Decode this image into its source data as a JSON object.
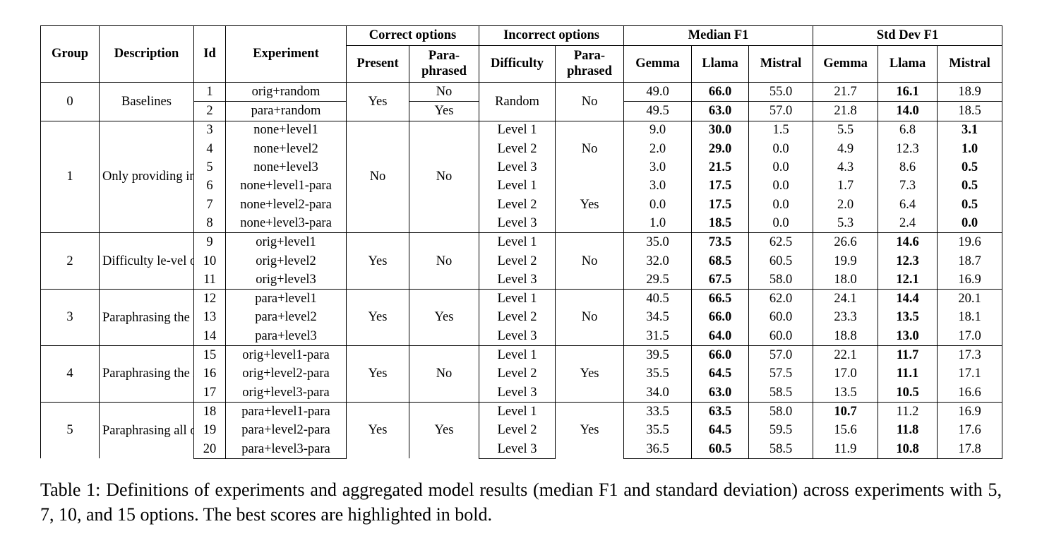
{
  "table": {
    "headers": {
      "group": "Group",
      "description": "Description",
      "id": "Id",
      "experiment": "Experiment",
      "correct_options": "Correct options",
      "incorrect_options": "Incorrect options",
      "median_f1": "Median F1",
      "std_dev_f1": "Std Dev F1",
      "present": "Present",
      "paraphrased": "Para-\nphrased",
      "difficulty": "Difficulty",
      "gemma": "Gemma",
      "llama": "Llama",
      "mistral": "Mistral"
    },
    "groups": [
      {
        "group": "0",
        "description": "Baselines",
        "rows": [
          {
            "id": "1",
            "experiment": "orig+random",
            "present": "Yes",
            "correct_para": "No",
            "difficulty": "Random",
            "incorrect_para": "No",
            "median": [
              "49.0",
              "66.0",
              "55.0"
            ],
            "std": [
              "21.7",
              "16.1",
              "18.9"
            ],
            "bold_median": 1,
            "bold_std": 1
          },
          {
            "id": "2",
            "experiment": "para+random",
            "present": "",
            "correct_para": "Yes",
            "difficulty": "",
            "incorrect_para": "",
            "median": [
              "49.5",
              "63.0",
              "57.0"
            ],
            "std": [
              "21.8",
              "14.0",
              "18.5"
            ],
            "bold_median": 1,
            "bold_std": 1
          }
        ]
      },
      {
        "group": "1",
        "description": "Only providing incorrect options",
        "rows": [
          {
            "id": "3",
            "experiment": "none+level1",
            "present": "No",
            "correct_para": "No",
            "difficulty": "Level 1",
            "incorrect_para": "No",
            "median": [
              "9.0",
              "30.0",
              "1.5"
            ],
            "std": [
              "5.5",
              "6.8",
              "3.1"
            ],
            "bold_median": 1,
            "bold_std": 2
          },
          {
            "id": "4",
            "experiment": "none+level2",
            "present": "",
            "correct_para": "",
            "difficulty": "Level 2",
            "incorrect_para": "",
            "median": [
              "2.0",
              "29.0",
              "0.0"
            ],
            "std": [
              "4.9",
              "12.3",
              "1.0"
            ],
            "bold_median": 1,
            "bold_std": 2
          },
          {
            "id": "5",
            "experiment": "none+level3",
            "present": "",
            "correct_para": "",
            "difficulty": "Level 3",
            "incorrect_para": "",
            "median": [
              "3.0",
              "21.5",
              "0.0"
            ],
            "std": [
              "4.3",
              "8.6",
              "0.5"
            ],
            "bold_median": 1,
            "bold_std": 2
          },
          {
            "id": "6",
            "experiment": "none+level1-para",
            "present": "",
            "correct_para": "",
            "difficulty": "Level 1",
            "incorrect_para": "Yes",
            "median": [
              "3.0",
              "17.5",
              "0.0"
            ],
            "std": [
              "1.7",
              "7.3",
              "0.5"
            ],
            "bold_median": 1,
            "bold_std": 2
          },
          {
            "id": "7",
            "experiment": "none+level2-para",
            "present": "",
            "correct_para": "",
            "difficulty": "Level 2",
            "incorrect_para": "",
            "median": [
              "0.0",
              "17.5",
              "0.0"
            ],
            "std": [
              "2.0",
              "6.4",
              "0.5"
            ],
            "bold_median": 1,
            "bold_std": 2
          },
          {
            "id": "8",
            "experiment": "none+level3-para",
            "present": "",
            "correct_para": "",
            "difficulty": "Level 3",
            "incorrect_para": "",
            "median": [
              "1.0",
              "18.5",
              "0.0"
            ],
            "std": [
              "5.3",
              "2.4",
              "0.0"
            ],
            "bold_median": 1,
            "bold_std": 2
          }
        ]
      },
      {
        "group": "2",
        "description": "Difficulty le-vel of incor-rect options",
        "rows": [
          {
            "id": "9",
            "experiment": "orig+level1",
            "present": "Yes",
            "correct_para": "No",
            "difficulty": "Level 1",
            "incorrect_para": "No",
            "median": [
              "35.0",
              "73.5",
              "62.5"
            ],
            "std": [
              "26.6",
              "14.6",
              "19.6"
            ],
            "bold_median": 1,
            "bold_std": 1
          },
          {
            "id": "10",
            "experiment": "orig+level2",
            "present": "",
            "correct_para": "",
            "difficulty": "Level 2",
            "incorrect_para": "",
            "median": [
              "32.0",
              "68.5",
              "60.5"
            ],
            "std": [
              "19.9",
              "12.3",
              "18.7"
            ],
            "bold_median": 1,
            "bold_std": 1
          },
          {
            "id": "11",
            "experiment": "orig+level3",
            "present": "",
            "correct_para": "",
            "difficulty": "Level 3",
            "incorrect_para": "",
            "median": [
              "29.5",
              "67.5",
              "58.0"
            ],
            "std": [
              "18.0",
              "12.1",
              "16.9"
            ],
            "bold_median": 1,
            "bold_std": 1
          }
        ]
      },
      {
        "group": "3",
        "description": "Paraphrasing the correct options",
        "rows": [
          {
            "id": "12",
            "experiment": "para+level1",
            "present": "Yes",
            "correct_para": "Yes",
            "difficulty": "Level 1",
            "incorrect_para": "No",
            "median": [
              "40.5",
              "66.5",
              "62.0"
            ],
            "std": [
              "24.1",
              "14.4",
              "20.1"
            ],
            "bold_median": 1,
            "bold_std": 1
          },
          {
            "id": "13",
            "experiment": "para+level2",
            "present": "",
            "correct_para": "",
            "difficulty": "Level 2",
            "incorrect_para": "",
            "median": [
              "34.5",
              "66.0",
              "60.0"
            ],
            "std": [
              "23.3",
              "13.5",
              "18.1"
            ],
            "bold_median": 1,
            "bold_std": 1
          },
          {
            "id": "14",
            "experiment": "para+level3",
            "present": "",
            "correct_para": "",
            "difficulty": "Level 3",
            "incorrect_para": "",
            "median": [
              "31.5",
              "64.0",
              "60.0"
            ],
            "std": [
              "18.8",
              "13.0",
              "17.0"
            ],
            "bold_median": 1,
            "bold_std": 1
          }
        ]
      },
      {
        "group": "4",
        "description": "Paraphrasing the incorrect options",
        "rows": [
          {
            "id": "15",
            "experiment": "orig+level1-para",
            "present": "Yes",
            "correct_para": "No",
            "difficulty": "Level 1",
            "incorrect_para": "Yes",
            "median": [
              "39.5",
              "66.0",
              "57.0"
            ],
            "std": [
              "22.1",
              "11.7",
              "17.3"
            ],
            "bold_median": 1,
            "bold_std": 1
          },
          {
            "id": "16",
            "experiment": "orig+level2-para",
            "present": "",
            "correct_para": "",
            "difficulty": "Level 2",
            "incorrect_para": "",
            "median": [
              "35.5",
              "64.5",
              "57.5"
            ],
            "std": [
              "17.0",
              "11.1",
              "17.1"
            ],
            "bold_median": 1,
            "bold_std": 1
          },
          {
            "id": "17",
            "experiment": "orig+level3-para",
            "present": "",
            "correct_para": "",
            "difficulty": "Level 3",
            "incorrect_para": "",
            "median": [
              "34.0",
              "63.0",
              "58.5"
            ],
            "std": [
              "13.5",
              "10.5",
              "16.6"
            ],
            "bold_median": 1,
            "bold_std": 1
          }
        ]
      },
      {
        "group": "5",
        "description": "Paraphrasing all options",
        "rows": [
          {
            "id": "18",
            "experiment": "para+level1-para",
            "present": "Yes",
            "correct_para": "Yes",
            "difficulty": "Level 1",
            "incorrect_para": "Yes",
            "median": [
              "33.5",
              "63.5",
              "58.0"
            ],
            "std": [
              "10.7",
              "11.2",
              "16.9"
            ],
            "bold_median": 1,
            "bold_std": 0
          },
          {
            "id": "19",
            "experiment": "para+level2-para",
            "present": "",
            "correct_para": "",
            "difficulty": "Level 2",
            "incorrect_para": "",
            "median": [
              "35.5",
              "64.5",
              "59.5"
            ],
            "std": [
              "15.6",
              "11.8",
              "17.6"
            ],
            "bold_median": 1,
            "bold_std": 1
          },
          {
            "id": "20",
            "experiment": "para+level3-para",
            "present": "",
            "correct_para": "",
            "difficulty": "Level 3",
            "incorrect_para": "",
            "median": [
              "36.5",
              "60.5",
              "58.5"
            ],
            "std": [
              "11.9",
              "10.8",
              "17.8"
            ],
            "bold_median": 1,
            "bold_std": 1
          }
        ]
      }
    ]
  },
  "caption": "Table 1: Definitions of experiments and aggregated model results (median F1 and standard deviation) across experiments with 5, 7, 10, and 15 options. The best scores are highlighted in bold."
}
